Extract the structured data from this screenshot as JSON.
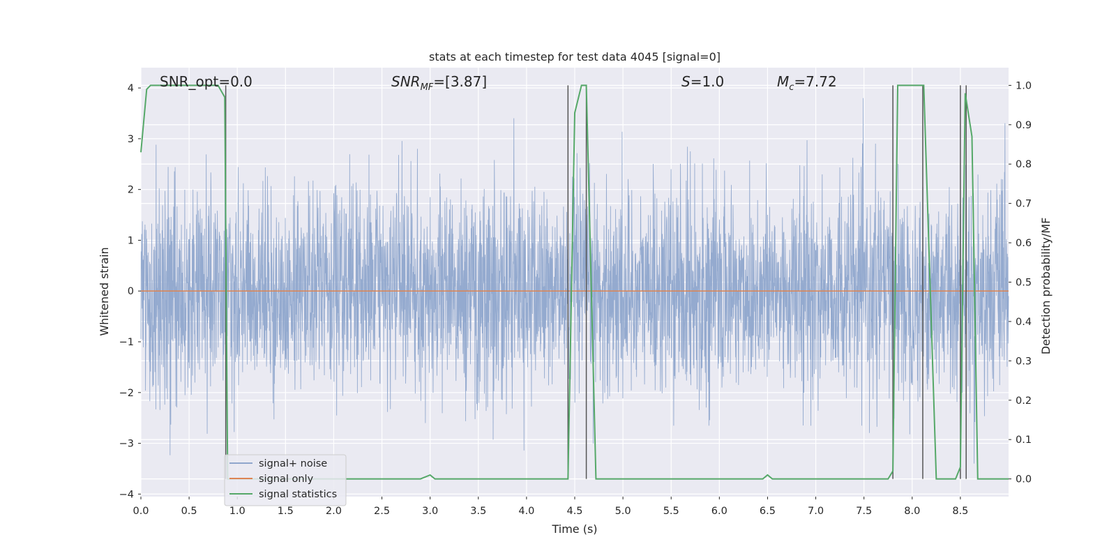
{
  "chart_data": {
    "type": "line",
    "title": "stats at each timestep for test data 4045 [signal=0]",
    "xlabel": "Time (s)",
    "ylabel": "Whitened strain",
    "y2label": "Detection probability/MF",
    "xlim": [
      0.0,
      9.0
    ],
    "ylim": [
      -4.05,
      4.4
    ],
    "y2lim": [
      -0.045,
      1.045
    ],
    "xticks": [
      "0.0",
      "0.5",
      "1.0",
      "1.5",
      "2.0",
      "2.5",
      "3.0",
      "3.5",
      "4.0",
      "4.5",
      "5.0",
      "5.5",
      "6.0",
      "6.5",
      "7.0",
      "7.5",
      "8.0",
      "8.5"
    ],
    "yticks": [
      "4",
      "3",
      "2",
      "1",
      "0",
      "−1",
      "−2",
      "−3",
      "−4"
    ],
    "y2ticks": [
      "1.0",
      "0.9",
      "0.8",
      "0.7",
      "0.6",
      "0.5",
      "0.4",
      "0.3",
      "0.2",
      "0.1",
      "0.0"
    ],
    "grid": true,
    "legend_position": "lower-left",
    "annotations": {
      "snr_opt": "SNR_opt=0.0",
      "snr_mf_main": "SNR",
      "snr_mf_sub": "MF",
      "snr_mf_value": "=[3.87]",
      "s_main": "S",
      "s_value": "=1.0",
      "mc_main": "M",
      "mc_sub": "c",
      "mc_value": "=7.72"
    },
    "colors": {
      "noise": "#8fa6cc",
      "signal": "#dd8452",
      "statistics": "#55a868",
      "vlines": "#555555",
      "background": "#eaeaf2",
      "grid": "#ffffff"
    },
    "series": [
      {
        "name": "signal+ noise",
        "axis": "left",
        "description": "white noise strain, approx range -3.6 to 3.8"
      },
      {
        "name": "signal only",
        "axis": "left",
        "x": [
          0.0,
          9.0
        ],
        "y": [
          0.0,
          0.0
        ]
      },
      {
        "name": "signal statistics",
        "axis": "right",
        "x": [
          0.0,
          0.06,
          0.1,
          0.8,
          0.87,
          0.9,
          0.95,
          2.9,
          3.0,
          3.05,
          4.43,
          4.5,
          4.57,
          4.62,
          4.72,
          6.45,
          6.5,
          6.55,
          7.75,
          7.8,
          7.85,
          8.12,
          8.25,
          8.45,
          8.5,
          8.55,
          8.62,
          8.68,
          8.75,
          9.0
        ],
        "y": [
          0.83,
          0.99,
          1.0,
          1.0,
          0.97,
          0.0,
          0.0,
          0.0,
          0.01,
          0.0,
          0.0,
          0.93,
          1.0,
          1.0,
          0.0,
          0.0,
          0.01,
          0.0,
          0.0,
          0.02,
          1.0,
          1.0,
          0.0,
          0.0,
          0.03,
          0.98,
          0.87,
          0.0,
          0.0,
          0.0
        ]
      }
    ],
    "vlines": [
      0.88,
      4.43,
      4.62,
      7.8,
      8.11,
      8.5,
      8.56
    ]
  }
}
